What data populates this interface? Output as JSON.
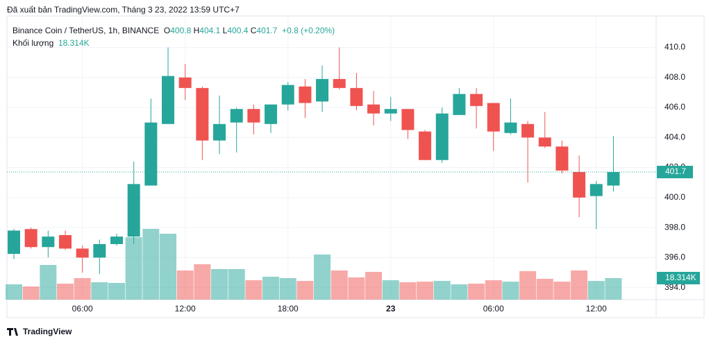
{
  "published": "Đã xuất bản TradingView.com, Tháng 3 23, 2022 13:59 UTC+7",
  "chart_data": {
    "type": "candlestick",
    "title": "Binance Coin / TetherUS, 1h, BINANCE",
    "ohlc": [
      {
        "key": "O",
        "value": "400.8"
      },
      {
        "key": "H",
        "value": "404.1"
      },
      {
        "key": "L",
        "value": "400.4"
      },
      {
        "key": "C",
        "value": "401.7"
      }
    ],
    "change": "+0.8 (+0.20%)",
    "volume_title": "Khối lượng",
    "volume_text": "18.314K",
    "last_price_label": "401.7",
    "last_volume_label": "18.314K",
    "up_color": "#26a69a",
    "down_color": "#ef5350",
    "categories": [
      null,
      null,
      null,
      null,
      "06:00",
      null,
      null,
      null,
      null,
      null,
      "12:00",
      null,
      null,
      null,
      null,
      null,
      "18:00",
      null,
      null,
      null,
      null,
      null,
      "23",
      null,
      null,
      null,
      null,
      null,
      "06:00",
      null,
      null,
      null,
      null,
      null,
      "12:00",
      null
    ],
    "open": [
      396.25,
      397.9,
      396.7,
      397.5,
      396.6,
      396.0,
      396.9,
      397.4,
      400.8,
      404.9,
      408.0,
      407.3,
      403.8,
      405.0,
      405.9,
      404.9,
      406.2,
      407.4,
      406.4,
      407.9,
      407.3,
      406.2,
      405.6,
      405.9,
      404.4,
      402.5,
      405.5,
      406.9,
      406.3,
      404.3,
      404.9,
      404.0,
      403.4,
      401.7,
      400.1,
      400.8
    ],
    "high": [
      397.9,
      398.0,
      397.8,
      397.8,
      396.8,
      397.2,
      397.6,
      402.4,
      406.6,
      410.0,
      408.9,
      407.4,
      406.8,
      406.0,
      406.2,
      406.2,
      407.7,
      407.9,
      408.8,
      410.0,
      408.3,
      407.1,
      406.7,
      405.9,
      404.5,
      406.0,
      407.3,
      407.3,
      406.3,
      406.6,
      405.1,
      405.7,
      403.8,
      402.8,
      401.1,
      404.1
    ],
    "low": [
      395.9,
      396.6,
      396.0,
      396.5,
      395.0,
      394.9,
      396.8,
      396.9,
      400.8,
      404.9,
      406.5,
      402.5,
      402.9,
      403.0,
      404.2,
      404.3,
      405.8,
      405.3,
      405.7,
      407.2,
      405.8,
      404.8,
      405.1,
      403.9,
      402.5,
      402.3,
      405.5,
      404.6,
      403.1,
      404.2,
      401.0,
      403.3,
      401.6,
      398.7,
      397.9,
      400.4
    ],
    "close": [
      397.8,
      396.7,
      397.4,
      396.6,
      396.0,
      396.9,
      397.4,
      400.9,
      405.0,
      408.1,
      407.3,
      403.8,
      404.9,
      405.9,
      405.0,
      406.2,
      407.5,
      406.3,
      407.9,
      407.3,
      406.1,
      405.6,
      405.9,
      404.5,
      402.5,
      405.6,
      406.9,
      406.1,
      404.4,
      405.0,
      404.0,
      403.4,
      401.8,
      400.0,
      400.9,
      401.7
    ],
    "volume": [
      13.0,
      11.2,
      29.5,
      13.6,
      18.3,
      14.8,
      14.2,
      53.1,
      60.2,
      56.1,
      24.8,
      30.1,
      26.0,
      26.0,
      16.5,
      19.5,
      18.3,
      15.9,
      38.4,
      24.8,
      18.9,
      23.6,
      16.5,
      14.8,
      15.3,
      15.9,
      13.0,
      13.6,
      16.5,
      15.3,
      24.2,
      17.7,
      15.3,
      24.8,
      15.9,
      18.314
    ],
    "ylim": [
      393.2,
      412.1
    ],
    "yticks": [
      {
        "value": 394,
        "label": "394.0"
      },
      {
        "value": 396,
        "label": "396.0"
      },
      {
        "value": 398,
        "label": "398.0"
      },
      {
        "value": 400,
        "label": "400.0"
      },
      {
        "value": 402,
        "label": "402.0"
      },
      {
        "value": 404,
        "label": "404.0"
      },
      {
        "value": 406,
        "label": "406.0"
      },
      {
        "value": 408,
        "label": "408.0"
      },
      {
        "value": 410,
        "label": "410.0"
      }
    ],
    "grid": true
  },
  "footer": "TradingView"
}
